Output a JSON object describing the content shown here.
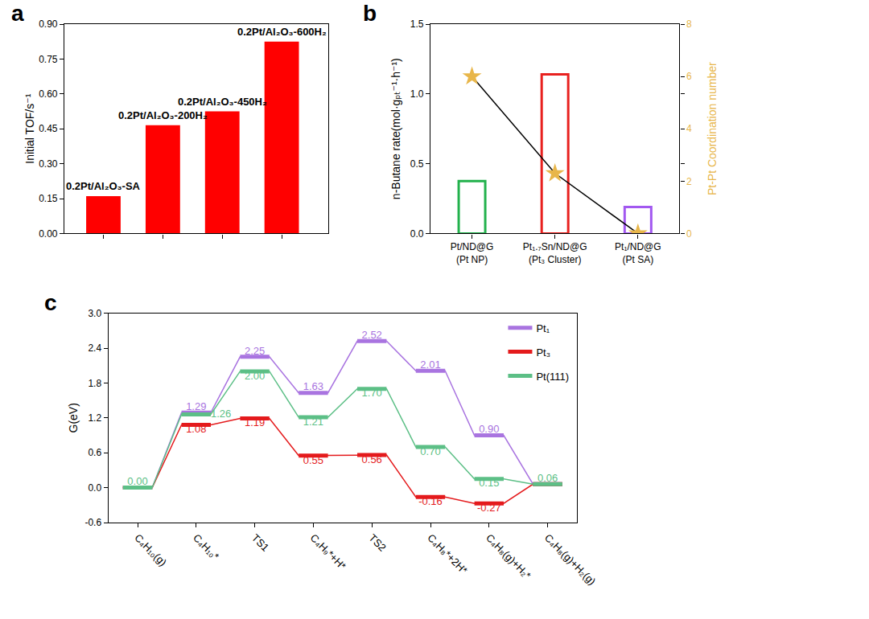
{
  "chart_data": [
    {
      "panel_label": "a",
      "type": "bar",
      "categories": [
        "0.2Pt/Al₂O₃-SA",
        "0.2Pt/Al₂O₃-200H₂",
        "0.2Pt/Al₂O₃-450H₂",
        "0.2Pt/Al₂O₃-600H₂"
      ],
      "values": [
        0.16,
        0.465,
        0.525,
        0.825
      ],
      "color": "#ff0000",
      "ylabel": "Initial TOF/s⁻¹",
      "ylim": [
        0,
        0.9
      ],
      "yticks": [
        {
          "value": 0,
          "label": "0.00"
        },
        0.15,
        {
          "value": 0.3,
          "label": "0.30"
        },
        0.45,
        {
          "value": 0.6,
          "label": "0.60"
        },
        0.75,
        {
          "value": 0.9,
          "label": "0.90"
        }
      ],
      "tick_labels": "y"
    },
    {
      "panel_label": "b",
      "type": "bar",
      "categories": [
        "Pt/ND@G\n(Pt NP)",
        "Pt₁.₇Sn/ND@G\n(Pt₃ Cluster)",
        "Pt₁/ND@G\n(Pt SA)"
      ],
      "series": [
        {
          "name": "n-Butane rate(mol·gₚₜ⁻¹·h⁻¹)",
          "type": "bar",
          "marker": "hollow",
          "colors": [
            "#22b14c",
            "#e8211f",
            "#a258f0"
          ],
          "values": [
            0.375,
            1.14,
            0.19
          ]
        },
        {
          "name": "Pt-Pt Coordination number",
          "type": "line",
          "axis": "y2",
          "marker": "star",
          "color": "#e8b64a",
          "values": [
            6,
            2.3,
            0
          ]
        }
      ],
      "ylim": [
        0,
        1.5
      ],
      "yticks": [
        {
          "value": 0,
          "label": "0.0"
        },
        0.5,
        {
          "value": 1,
          "label": "1.0"
        },
        1.5
      ],
      "y2lim": [
        0,
        8
      ],
      "y2ticks": [
        0,
        2,
        4,
        6,
        8
      ]
    },
    {
      "panel_label": "c",
      "type": "step",
      "categories": [
        "C₄H₁₀(g)",
        "C₄H₁₀*",
        "TS1",
        "C₄H₉*+H*",
        "TS2",
        "C₄H₈*+2H*",
        "C₄H₈(g)+H₂*",
        "C₄H₈(g)+H₂(g)"
      ],
      "ylabel": "G(eV)",
      "ylim": [
        -0.6,
        3.0
      ],
      "yticks": [
        -0.6,
        {
          "value": 0,
          "label": "0.0"
        },
        0.6,
        1.2,
        1.8,
        2.4,
        {
          "value": 3,
          "label": "3.0"
        }
      ],
      "data_labels": true,
      "legend": "upper right",
      "series": [
        {
          "name": "Pt₁",
          "color": "#a974e0",
          "values": [
            0,
            1.29,
            2.25,
            1.63,
            2.52,
            2.01,
            0.9,
            0.06
          ],
          "value_labels": [
            null,
            "1.29",
            "2.25",
            "1.63",
            "2.52",
            "2.01",
            "0.90",
            null
          ]
        },
        {
          "name": "Pt₃",
          "color": "#e41a1c",
          "values": [
            0,
            1.08,
            1.19,
            0.55,
            0.56,
            -0.16,
            -0.27,
            0.06
          ],
          "value_labels": [
            null,
            "1.08",
            "1.19",
            "0.55",
            "0.56",
            "-0.16",
            "-0.27",
            null
          ]
        },
        {
          "name": "Pt(111)",
          "color": "#5cbf86",
          "values": [
            0,
            1.26,
            2.0,
            1.21,
            1.7,
            0.7,
            0.15,
            0.06
          ],
          "value_labels": [
            "0.00",
            "1.26",
            "2.00",
            "1.21",
            "1.70",
            "0.70",
            "0.15",
            "0.06"
          ]
        }
      ]
    }
  ]
}
